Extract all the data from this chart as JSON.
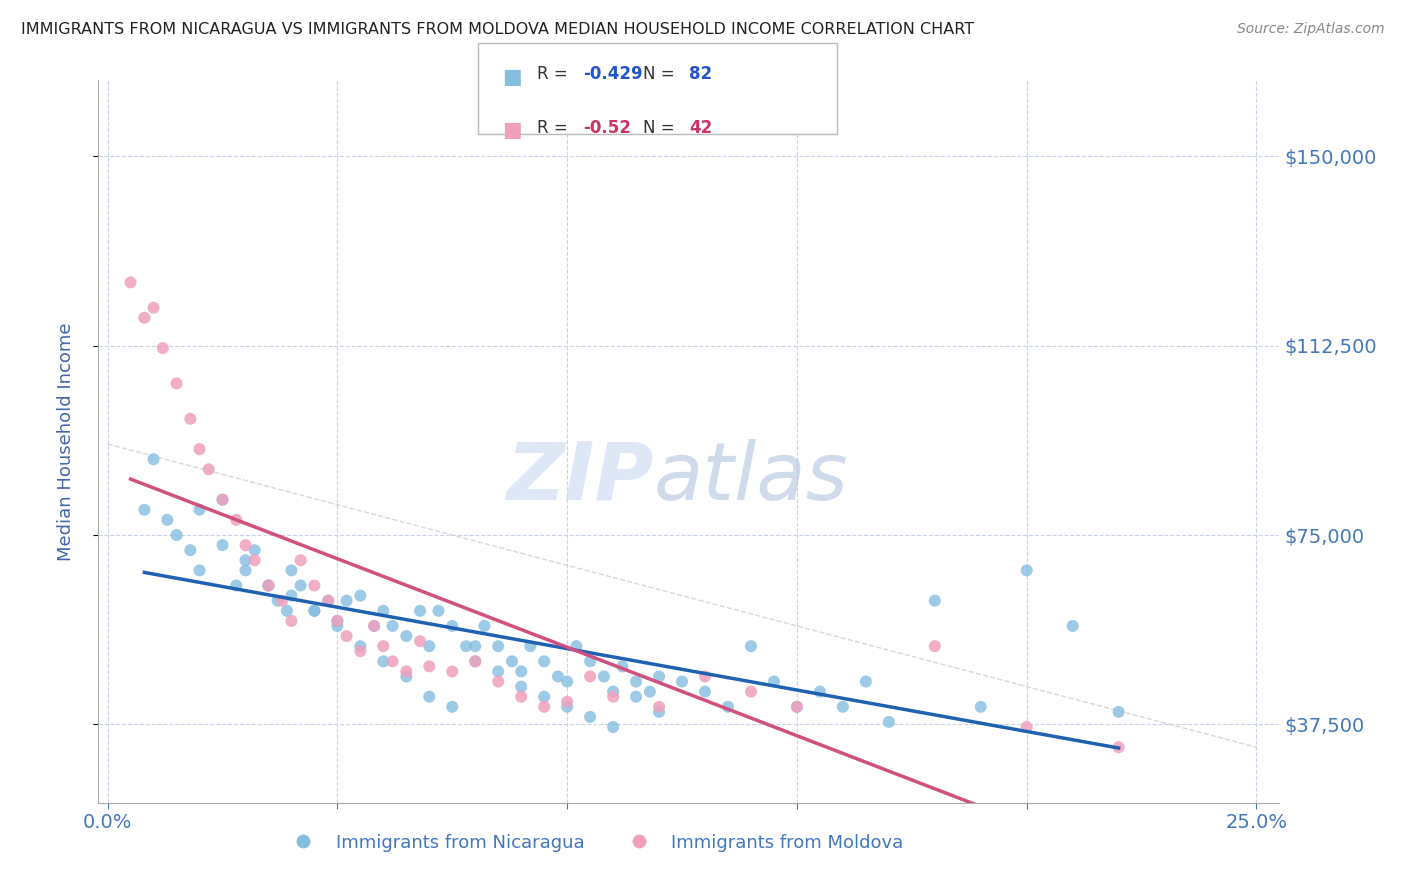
{
  "title": "IMMIGRANTS FROM NICARAGUA VS IMMIGRANTS FROM MOLDOVA MEDIAN HOUSEHOLD INCOME CORRELATION CHART",
  "source": "Source: ZipAtlas.com",
  "ylabel": "Median Household Income",
  "watermark_zip": "ZIP",
  "watermark_atlas": "atlas",
  "xlim": [
    -0.002,
    0.255
  ],
  "ylim": [
    22000,
    165000
  ],
  "yticks": [
    37500,
    75000,
    112500,
    150000
  ],
  "xticks": [
    0.0,
    0.05,
    0.1,
    0.15,
    0.2,
    0.25
  ],
  "blue_R": -0.429,
  "blue_N": 82,
  "pink_R": -0.52,
  "pink_N": 42,
  "blue_color": "#85bde0",
  "pink_color": "#f0a0bc",
  "line_blue_color": "#2060b0",
  "line_pink_color": "#d05080",
  "line_gray_color": "#c8c8c8",
  "background_color": "#ffffff",
  "grid_color": "#c8d4e8",
  "title_color": "#222222",
  "axis_label_color": "#4466aa",
  "tick_color": "#4477bb",
  "legend_r_color_blue": "#2255cc",
  "legend_r_color_pink": "#cc3366",
  "blue_scatter_x": [
    0.008,
    0.01,
    0.013,
    0.018,
    0.02,
    0.025,
    0.028,
    0.03,
    0.032,
    0.035,
    0.037,
    0.039,
    0.04,
    0.042,
    0.045,
    0.048,
    0.05,
    0.052,
    0.055,
    0.058,
    0.06,
    0.062,
    0.065,
    0.068,
    0.07,
    0.072,
    0.075,
    0.078,
    0.08,
    0.082,
    0.085,
    0.088,
    0.09,
    0.092,
    0.095,
    0.098,
    0.1,
    0.102,
    0.105,
    0.108,
    0.11,
    0.112,
    0.115,
    0.118,
    0.12,
    0.125,
    0.13,
    0.135,
    0.14,
    0.145,
    0.15,
    0.155,
    0.16,
    0.165,
    0.17,
    0.18,
    0.19,
    0.2,
    0.21,
    0.22,
    0.015,
    0.02,
    0.025,
    0.03,
    0.035,
    0.04,
    0.045,
    0.05,
    0.055,
    0.06,
    0.065,
    0.07,
    0.075,
    0.08,
    0.085,
    0.09,
    0.095,
    0.1,
    0.105,
    0.11,
    0.115,
    0.12
  ],
  "blue_scatter_y": [
    80000,
    90000,
    78000,
    72000,
    68000,
    82000,
    65000,
    68000,
    72000,
    65000,
    62000,
    60000,
    68000,
    65000,
    60000,
    62000,
    58000,
    62000,
    63000,
    57000,
    60000,
    57000,
    55000,
    60000,
    53000,
    60000,
    57000,
    53000,
    50000,
    57000,
    53000,
    50000,
    48000,
    53000,
    50000,
    47000,
    46000,
    53000,
    50000,
    47000,
    44000,
    49000,
    46000,
    44000,
    40000,
    46000,
    44000,
    41000,
    53000,
    46000,
    41000,
    44000,
    41000,
    46000,
    38000,
    62000,
    41000,
    68000,
    57000,
    40000,
    75000,
    80000,
    73000,
    70000,
    65000,
    63000,
    60000,
    57000,
    53000,
    50000,
    47000,
    43000,
    41000,
    53000,
    48000,
    45000,
    43000,
    41000,
    39000,
    37000,
    43000,
    47000
  ],
  "pink_scatter_x": [
    0.005,
    0.008,
    0.01,
    0.012,
    0.015,
    0.018,
    0.02,
    0.022,
    0.025,
    0.028,
    0.03,
    0.032,
    0.035,
    0.038,
    0.04,
    0.042,
    0.045,
    0.048,
    0.05,
    0.052,
    0.055,
    0.058,
    0.06,
    0.062,
    0.065,
    0.068,
    0.07,
    0.075,
    0.08,
    0.085,
    0.09,
    0.095,
    0.1,
    0.105,
    0.11,
    0.12,
    0.13,
    0.14,
    0.15,
    0.18,
    0.2,
    0.22
  ],
  "pink_scatter_y": [
    125000,
    118000,
    120000,
    112000,
    105000,
    98000,
    92000,
    88000,
    82000,
    78000,
    73000,
    70000,
    65000,
    62000,
    58000,
    70000,
    65000,
    62000,
    58000,
    55000,
    52000,
    57000,
    53000,
    50000,
    48000,
    54000,
    49000,
    48000,
    50000,
    46000,
    43000,
    41000,
    42000,
    47000,
    43000,
    41000,
    47000,
    44000,
    41000,
    53000,
    37000,
    33000
  ]
}
